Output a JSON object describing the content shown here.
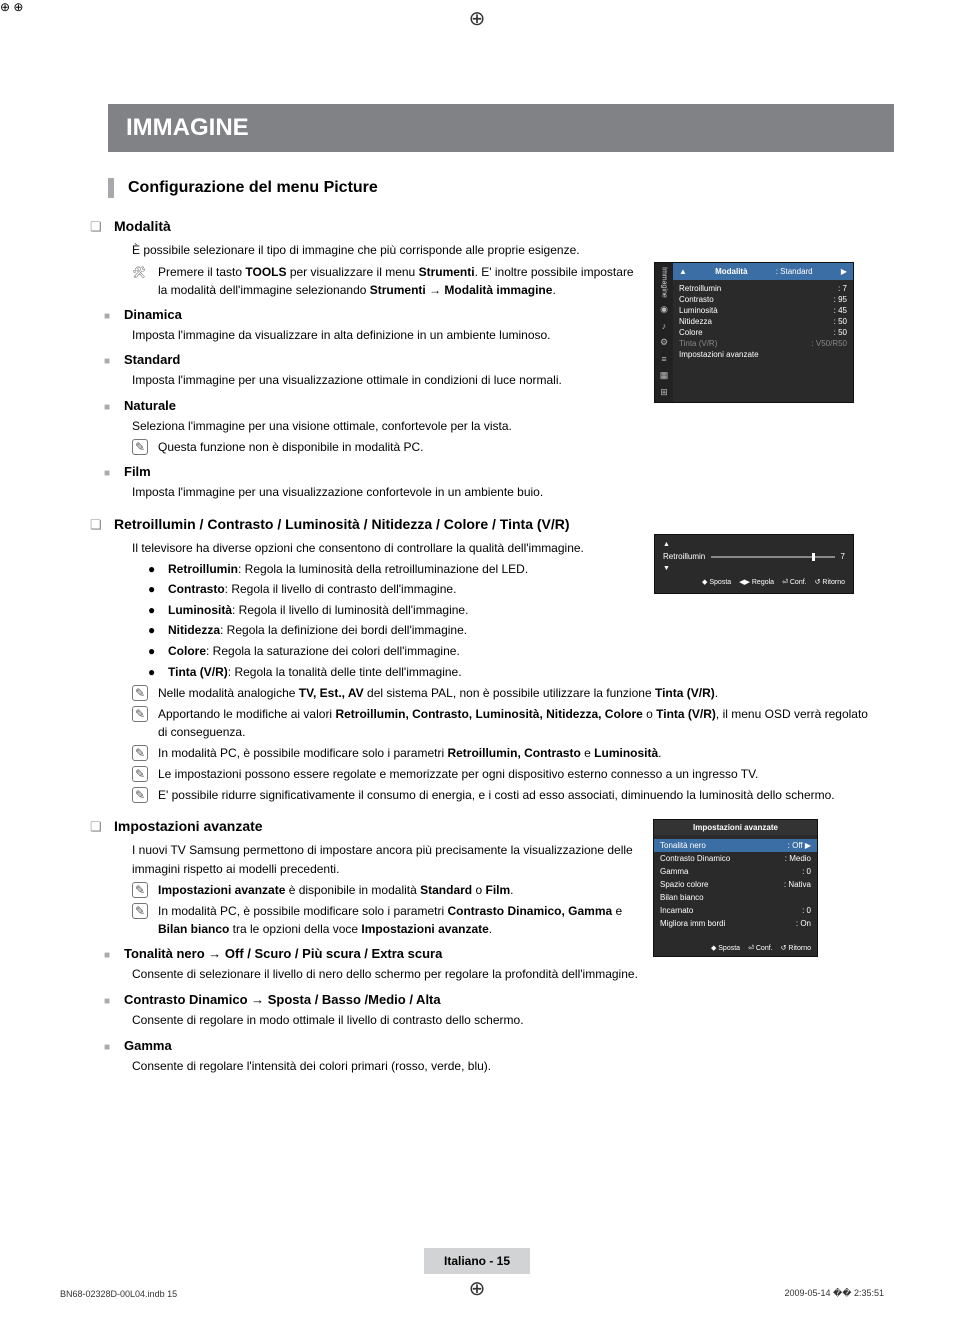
{
  "regmark": "⊕",
  "mainTitle": "IMMAGINE",
  "heading": "Configurazione del menu Picture",
  "s1": {
    "title": "Modalità",
    "intro": "È possibile selezionare il tipo di immagine che più corrisponde alle proprie esigenze.",
    "tool1a": "Premere il tasto ",
    "tool1b": "TOOLS",
    "tool1c": " per visualizzare il menu ",
    "tool1d": "Strumenti",
    "tool1e": ". E' inoltre possibile impostare la modalità dell'immagine selezionando ",
    "tool1f": "Strumenti → Modalità immagine",
    "tool1g": ".",
    "items": [
      {
        "t": "Dinamica",
        "d": "Imposta l'immagine da visualizzare in alta definizione in un ambiente luminoso."
      },
      {
        "t": "Standard",
        "d": "Imposta l'immagine per una visualizzazione ottimale in condizioni di luce normali."
      },
      {
        "t": "Naturale",
        "d": "Seleziona l'immagine per una visione ottimale, confortevole per la vista.",
        "note": "Questa funzione non è disponibile in modalità PC."
      },
      {
        "t": "Film",
        "d": "Imposta l'immagine per una visualizzazione confortevole in un ambiente buio."
      }
    ]
  },
  "s2": {
    "title": "Retroillumin / Contrasto / Luminosità / Nitidezza / Colore / Tinta (V/R)",
    "intro": "Il televisore ha diverse opzioni che consentono di controllare la qualità dell'immagine.",
    "bullets": [
      {
        "b": "Retroillumin",
        "t": ": Regola la luminosità della retroilluminazione del LED."
      },
      {
        "b": "Contrasto",
        "t": ": Regola il livello di contrasto dell'immagine."
      },
      {
        "b": "Luminosità",
        "t": ": Regola il livello di luminosità dell'immagine."
      },
      {
        "b": "Nitidezza",
        "t": ": Regola la definizione dei bordi dell'immagine."
      },
      {
        "b": "Colore",
        "t": ": Regola la saturazione dei colori dell'immagine."
      },
      {
        "b": "Tinta (V/R)",
        "t": ": Regola la tonalità delle tinte dell'immagine."
      }
    ],
    "n1a": "Nelle modalità analogiche ",
    "n1b": "TV, Est., AV",
    "n1c": " del sistema PAL, non è possibile utilizzare la funzione ",
    "n1d": "Tinta (V/R)",
    "n1e": ".",
    "n2a": "Apportando le modifiche ai valori ",
    "n2b": "Retroillumin, Contrasto, Luminosità, Nitidezza, Colore",
    "n2c": " o ",
    "n2d": "Tinta (V/R)",
    "n2e": ", il menu OSD verrà regolato di conseguenza.",
    "n3a": "In modalità PC, è possibile modificare solo i parametri ",
    "n3b": "Retroillumin, Contrasto",
    "n3c": " e ",
    "n3d": "Luminosità",
    "n3e": ".",
    "n4": "Le impostazioni possono essere regolate e memorizzate per ogni dispositivo esterno connesso a un ingresso TV.",
    "n5": "E' possibile ridurre significativamente il consumo di energia, e i costi ad esso associati, diminuendo la luminosità dello schermo."
  },
  "s3": {
    "title": "Impostazioni avanzate",
    "intro": "I nuovi TV Samsung permettono di impostare ancora più precisamente la visualizzazione delle immagini rispetto ai modelli precedenti.",
    "n1a": "Impostazioni avanzate",
    "n1b": " è disponibile in modalità ",
    "n1c": "Standard",
    "n1d": " o ",
    "n1e": "Film",
    "n1f": ".",
    "n2a": "In modalità PC, è possibile modificare solo i parametri ",
    "n2b": "Contrasto Dinamico, Gamma",
    "n2c": " e ",
    "n2d": "Bilan bianco",
    "n2e": " tra le opzioni della voce ",
    "n2f": "Impostazioni avanzate",
    "n2g": ".",
    "items": [
      {
        "t": "Tonalità nero → Off / Scuro / Più scura / Extra scura",
        "d": "Consente di selezionare il livello di nero dello schermo per regolare la profondità dell'immagine."
      },
      {
        "t": "Contrasto Dinamico → Sposta / Basso /Medio / Alta",
        "d": "Consente di regolare in modo ottimale il livello di contrasto dello schermo."
      },
      {
        "t": "Gamma",
        "d": "Consente di regolare l'intensità dei colori primari (rosso, verde, blu)."
      }
    ]
  },
  "osd1": {
    "headerL": "Modalità",
    "headerR": ": Standard",
    "rows": [
      {
        "l": "Retroillumin",
        "r": ": 7"
      },
      {
        "l": "Contrasto",
        "r": ": 95"
      },
      {
        "l": "Luminosità",
        "r": ": 45"
      },
      {
        "l": "Nitidezza",
        "r": ": 50"
      },
      {
        "l": "Colore",
        "r": ": 50"
      },
      {
        "l": "Tinta (V/R)",
        "r": ": V50/R50",
        "dim": true
      },
      {
        "l": "Impostazioni avanzate",
        "r": ""
      }
    ],
    "sideLabel": "Immagine"
  },
  "osd2": {
    "label": "Retroillumin",
    "value": "7",
    "thumbPos": 82,
    "footer": [
      "◆ Sposta",
      "◀▶ Regola",
      "⏎ Conf.",
      "↺ Ritorno"
    ]
  },
  "osd3": {
    "title": "Impostazioni avanzate",
    "rows": [
      {
        "l": "Tonalità nero",
        "r": ": Off",
        "hl": true
      },
      {
        "l": "Contrasto Dinamico",
        "r": ": Medio"
      },
      {
        "l": "Gamma",
        "r": ": 0"
      },
      {
        "l": "Spazio colore",
        "r": ": Nativa"
      },
      {
        "l": "Bilan bianco",
        "r": ""
      },
      {
        "l": "Incarnato",
        "r": ": 0"
      },
      {
        "l": "Migliora imm bordi",
        "r": ": On"
      }
    ],
    "footer": [
      "◆ Sposta",
      "⏎ Conf.",
      "↺ Ritorno"
    ]
  },
  "footer": "Italiano - 15",
  "metaLeft": "BN68-02328D-00L04.indb   15",
  "metaRight": "2009-05-14   �� 2:35:51"
}
